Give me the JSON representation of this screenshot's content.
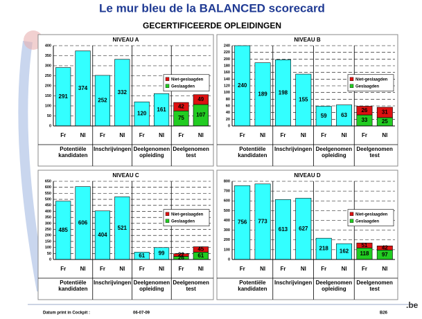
{
  "title": "Le mur bleu de la BALANCED scorecard",
  "subtitle": "GECERTIFICEERDE OPLEIDINGEN",
  "footer": {
    "label": "Datum print in Cockpit :",
    "date": "06-07-09",
    "page": "B26",
    "logo": ".be"
  },
  "chart_data": [
    {
      "type": "bar",
      "stacked": true,
      "title": "NIVEAU A",
      "grid": true,
      "legend": "right",
      "categories": [
        "Fr",
        "Nl",
        "Fr",
        "Nl",
        "Fr",
        "Nl",
        "Fr",
        "Nl"
      ],
      "groups": [
        "Potentiële kandidaten",
        "Inschrijvingen",
        "Deelgenomen opleiding",
        "Deelgenomen test"
      ],
      "ylim": [
        0,
        400
      ],
      "yticks": [
        0,
        50,
        100,
        150,
        200,
        250,
        300,
        350,
        400
      ],
      "series": [
        {
          "color": "#33ffff",
          "values": [
            291,
            374,
            252,
            332,
            120,
            161,
            null,
            null
          ]
        },
        {
          "name": "Geslaagden",
          "color": "#22cc22",
          "values": [
            null,
            null,
            null,
            null,
            null,
            null,
            75,
            107
          ]
        },
        {
          "name": "Niet-geslaagden",
          "color": "#dd1111",
          "values": [
            null,
            null,
            null,
            null,
            null,
            null,
            42,
            49
          ]
        }
      ]
    },
    {
      "type": "bar",
      "stacked": true,
      "title": "NIVEAU B",
      "grid": true,
      "legend": "right",
      "categories": [
        "Fr",
        "Nl",
        "Fr",
        "Nl",
        "Fr",
        "Nl",
        "Fr",
        "Nl"
      ],
      "groups": [
        "Potentiële kandidaten",
        "Inschrijvingen",
        "Deelgenomen opleiding",
        "Deelgenomen test"
      ],
      "ylim": [
        0,
        240
      ],
      "yticks": [
        0,
        20,
        40,
        60,
        80,
        100,
        120,
        140,
        160,
        180,
        200,
        220,
        240
      ],
      "series": [
        {
          "color": "#33ffff",
          "values": [
            240,
            189,
            198,
            155,
            59,
            63,
            null,
            null
          ]
        },
        {
          "name": "Geslaagden",
          "color": "#22cc22",
          "values": [
            null,
            null,
            null,
            null,
            null,
            null,
            33,
            25
          ]
        },
        {
          "name": "Niet-geslaagden",
          "color": "#dd1111",
          "values": [
            null,
            null,
            null,
            null,
            null,
            null,
            26,
            31
          ]
        }
      ]
    },
    {
      "type": "bar",
      "stacked": true,
      "title": "NIVEAU C",
      "grid": true,
      "legend": "right",
      "categories": [
        "Fr",
        "Nl",
        "Fr",
        "Nl",
        "Fr",
        "Nl",
        "Fr",
        "Nl"
      ],
      "groups": [
        "Potentiële kandidaten",
        "Inschrijvingen",
        "Deelgenomen opleiding",
        "Deelgenomen test"
      ],
      "ylim": [
        0,
        650
      ],
      "yticks": [
        0,
        50,
        100,
        150,
        200,
        250,
        300,
        350,
        400,
        450,
        500,
        550,
        600,
        650
      ],
      "series": [
        {
          "color": "#33ffff",
          "values": [
            485,
            606,
            404,
            521,
            61,
            99,
            null,
            null
          ]
        },
        {
          "name": "Geslaagden",
          "color": "#22cc22",
          "values": [
            null,
            null,
            null,
            null,
            null,
            null,
            26,
            61
          ]
        },
        {
          "name": "Niet-geslaagden",
          "color": "#dd1111",
          "values": [
            null,
            null,
            null,
            null,
            null,
            null,
            22,
            45
          ]
        }
      ]
    },
    {
      "type": "bar",
      "stacked": true,
      "title": "NIVEAU D",
      "grid": true,
      "legend": "right",
      "categories": [
        "Fr",
        "Nl",
        "Fr",
        "Nl",
        "Fr",
        "Nl",
        "Fr",
        "Nl"
      ],
      "groups": [
        "Potentiële kandidaten",
        "Inschrijvingen",
        "Deelgenomen opleiding",
        "Deelgenomen test"
      ],
      "ylim": [
        0,
        800
      ],
      "yticks": [
        0,
        100,
        200,
        300,
        400,
        500,
        600,
        700,
        800
      ],
      "series": [
        {
          "color": "#33ffff",
          "values": [
            756,
            773,
            613,
            627,
            218,
            162,
            null,
            null
          ]
        },
        {
          "name": "Geslaagden",
          "color": "#22cc22",
          "values": [
            null,
            null,
            null,
            null,
            null,
            null,
            118,
            97
          ]
        },
        {
          "name": "Niet-geslaagden",
          "color": "#dd1111",
          "values": [
            null,
            null,
            null,
            null,
            null,
            null,
            51,
            42
          ]
        }
      ]
    }
  ]
}
